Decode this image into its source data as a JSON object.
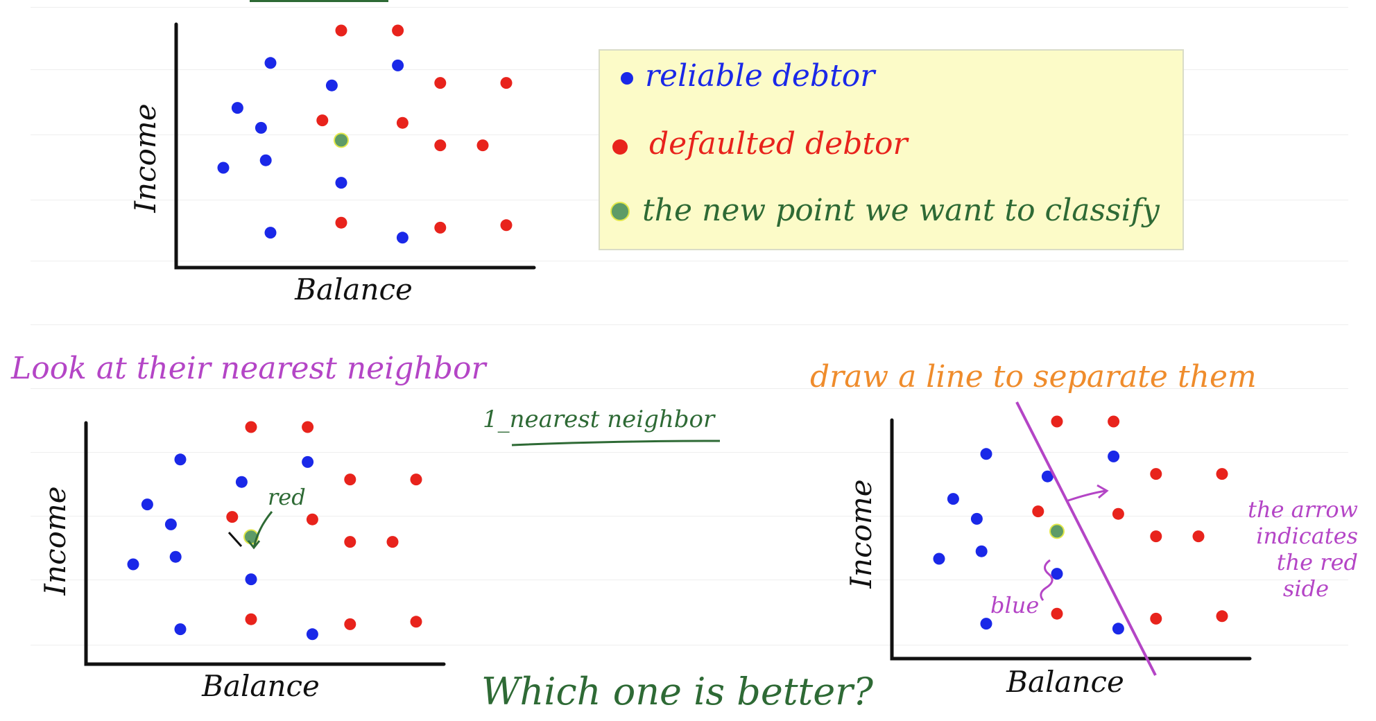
{
  "colors": {
    "blue": "#1a28e8",
    "red": "#e8231c",
    "green": "#2e6a35",
    "green_point": "#5e9b67",
    "purple": "#b445c6",
    "orange": "#ef8c2c",
    "legend_bg": "#fcfbc8"
  },
  "legend": {
    "items": [
      {
        "label": "reliable debtor",
        "color": "#1a28e8"
      },
      {
        "label": "defaulted debtor",
        "color": "#e8231c"
      },
      {
        "label": "the new point we want to classify",
        "color": "#2e6a35"
      }
    ]
  },
  "headings": {
    "left": "Look at their nearest neighbor",
    "right": "draw a line to separate them",
    "method": "1_nearest neighbor",
    "question": "Which one is better?"
  },
  "annotations": {
    "red_label": "red",
    "blue_label": "blue",
    "arrow_note": [
      "the arrow",
      "indicates",
      "the red",
      "side"
    ]
  },
  "chart_data": [
    {
      "type": "scatter",
      "xlabel": "Balance",
      "ylabel": "Income",
      "series": [
        {
          "name": "reliable debtor",
          "color": "#1a28e8",
          "points": [
            [
              2.0,
              8.2
            ],
            [
              3.3,
              7.3
            ],
            [
              1.3,
              6.4
            ],
            [
              1.8,
              5.6
            ],
            [
              1.0,
              4.0
            ],
            [
              1.9,
              4.3
            ],
            [
              3.5,
              3.4
            ],
            [
              2.0,
              1.4
            ],
            [
              4.8,
              1.2
            ],
            [
              4.7,
              8.1
            ]
          ]
        },
        {
          "name": "defaulted debtor",
          "color": "#e8231c",
          "points": [
            [
              3.5,
              9.5
            ],
            [
              4.7,
              9.5
            ],
            [
              5.6,
              7.4
            ],
            [
              7.0,
              7.4
            ],
            [
              3.1,
              5.9
            ],
            [
              4.8,
              5.8
            ],
            [
              5.6,
              4.9
            ],
            [
              6.5,
              4.9
            ],
            [
              3.5,
              1.8
            ],
            [
              5.6,
              1.6
            ],
            [
              7.0,
              1.7
            ]
          ]
        },
        {
          "name": "the new point we want to classify",
          "color": "#5e9b67",
          "points": [
            [
              3.5,
              5.1
            ]
          ]
        }
      ]
    },
    {
      "type": "scatter",
      "xlabel": "Balance",
      "ylabel": "Income",
      "series": [
        {
          "name": "reliable debtor",
          "color": "#1a28e8",
          "points": [
            [
              2.0,
              8.2
            ],
            [
              3.3,
              7.3
            ],
            [
              1.3,
              6.4
            ],
            [
              1.8,
              5.6
            ],
            [
              1.0,
              4.0
            ],
            [
              1.9,
              4.3
            ],
            [
              3.5,
              3.4
            ],
            [
              2.0,
              1.4
            ],
            [
              4.8,
              1.2
            ],
            [
              4.7,
              8.1
            ]
          ]
        },
        {
          "name": "defaulted debtor",
          "color": "#e8231c",
          "points": [
            [
              3.5,
              9.5
            ],
            [
              4.7,
              9.5
            ],
            [
              5.6,
              7.4
            ],
            [
              7.0,
              7.4
            ],
            [
              3.1,
              5.9
            ],
            [
              4.8,
              5.8
            ],
            [
              5.6,
              4.9
            ],
            [
              6.5,
              4.9
            ],
            [
              3.5,
              1.8
            ],
            [
              5.6,
              1.6
            ],
            [
              7.0,
              1.7
            ]
          ]
        },
        {
          "name": "the new point we want to classify",
          "color": "#5e9b67",
          "points": [
            [
              3.5,
              5.1
            ]
          ]
        }
      ]
    },
    {
      "type": "scatter",
      "xlabel": "Balance",
      "ylabel": "Income",
      "series": [
        {
          "name": "reliable debtor",
          "color": "#1a28e8",
          "points": [
            [
              2.0,
              8.2
            ],
            [
              3.3,
              7.3
            ],
            [
              1.3,
              6.4
            ],
            [
              1.8,
              5.6
            ],
            [
              1.0,
              4.0
            ],
            [
              1.9,
              4.3
            ],
            [
              3.5,
              3.4
            ],
            [
              2.0,
              1.4
            ],
            [
              4.8,
              1.2
            ],
            [
              4.7,
              8.1
            ]
          ]
        },
        {
          "name": "defaulted debtor",
          "color": "#e8231c",
          "points": [
            [
              3.5,
              9.5
            ],
            [
              4.7,
              9.5
            ],
            [
              5.6,
              7.4
            ],
            [
              7.0,
              7.4
            ],
            [
              3.1,
              5.9
            ],
            [
              4.8,
              5.8
            ],
            [
              5.6,
              4.9
            ],
            [
              6.5,
              4.9
            ],
            [
              3.5,
              1.8
            ],
            [
              5.6,
              1.6
            ],
            [
              7.0,
              1.7
            ]
          ]
        },
        {
          "name": "the new point we want to classify",
          "color": "#5e9b67",
          "points": [
            [
              3.5,
              5.1
            ]
          ]
        }
      ]
    }
  ]
}
